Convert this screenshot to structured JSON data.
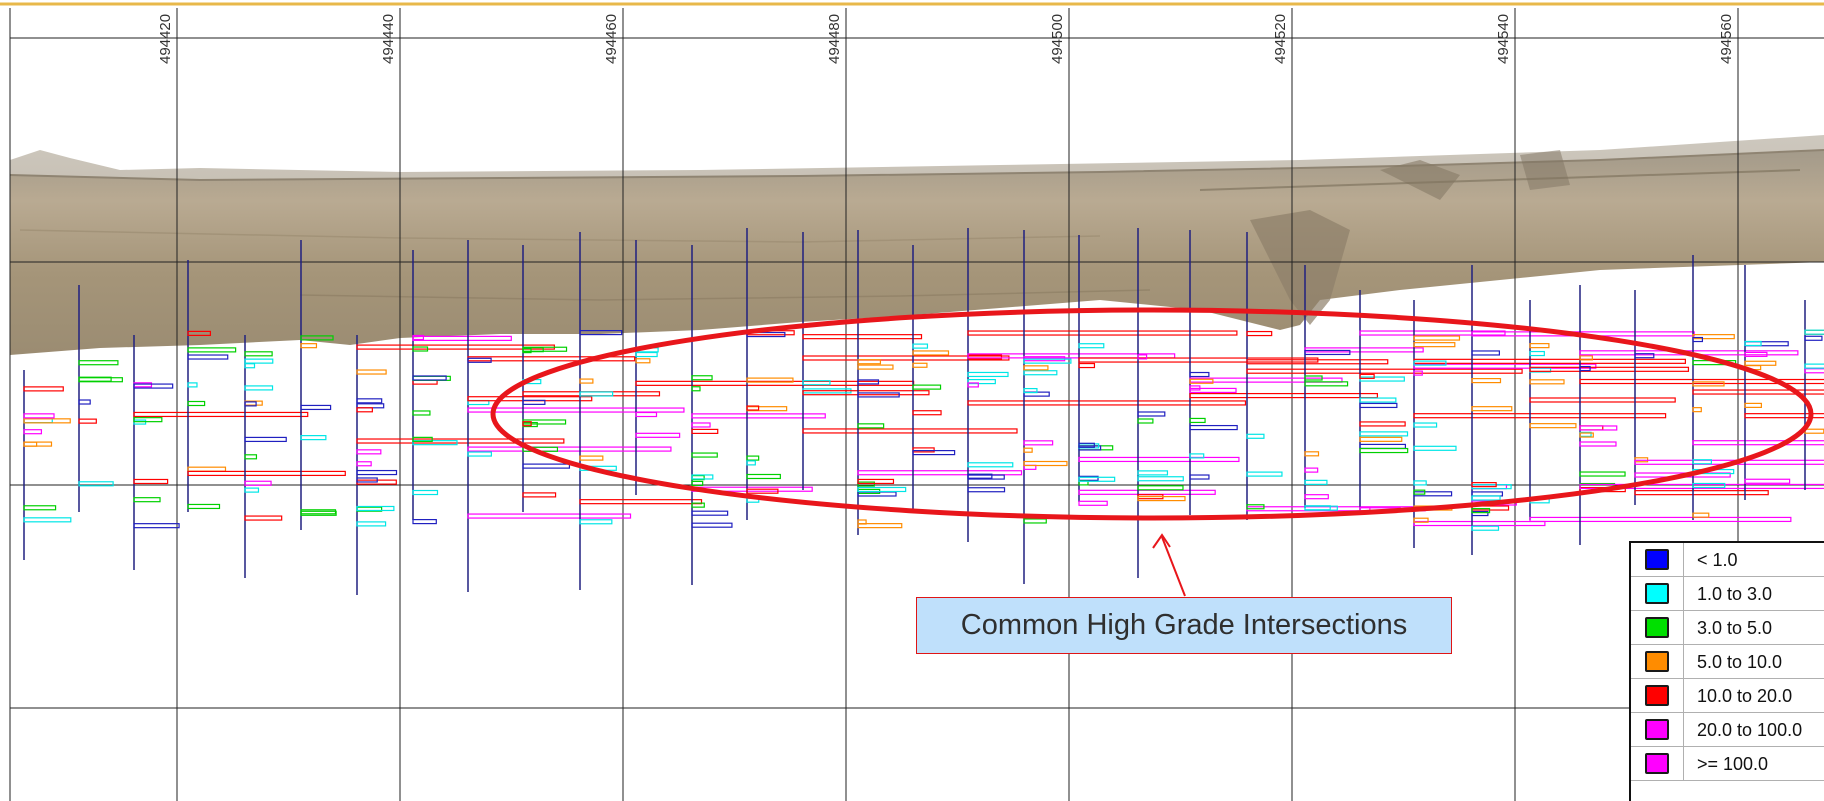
{
  "axis": {
    "tick_labels": [
      "494420",
      "494440",
      "494460",
      "494480",
      "494500",
      "494520",
      "494540",
      "494560"
    ]
  },
  "annotation": {
    "label": "Common High Grade Intersections",
    "ellipse_color": "#e8161b",
    "box_fill": "#bfe0fb"
  },
  "legend": {
    "items": [
      {
        "label": "< 1.0",
        "color": "#0000ff"
      },
      {
        "label": "1.0 to 3.0",
        "color": "#00ffff"
      },
      {
        "label": "3.0 to 5.0",
        "color": "#00e000"
      },
      {
        "label": "5.0 to 10.0",
        "color": "#ff8c00"
      },
      {
        "label": "10.0 to 20.0",
        "color": "#ff0000"
      },
      {
        "label": "20.0 to 100.0",
        "color": "#ff00ff"
      },
      {
        "label": ">= 100.0",
        "color": "#ff00ff"
      }
    ]
  },
  "colors": {
    "drillhole": "#202080",
    "grid": "#222222",
    "terrain_top": "#9a8f7e",
    "terrain_face": "#b3a48c",
    "frame_top": "#e8b84a"
  }
}
